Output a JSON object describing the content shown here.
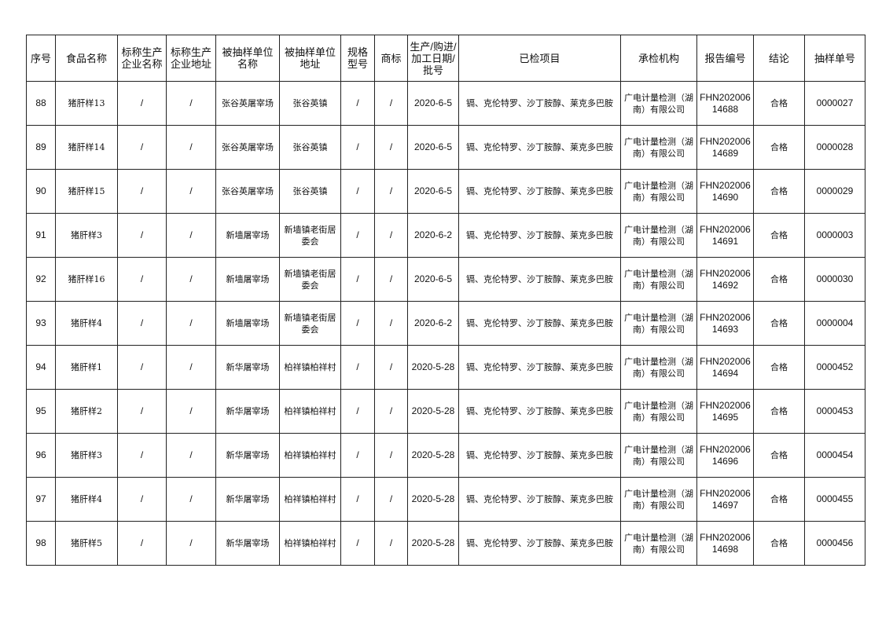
{
  "headers": [
    "序号",
    "食品名称",
    "标称生产企业名称",
    "标称生产企业地址",
    "被抽样单位名称",
    "被抽样单位地址",
    "规格型号",
    "商标",
    "生产/购进/加工日期/批号",
    "已检项目",
    "承检机构",
    "报告编号",
    "结论",
    "抽样单号"
  ],
  "rows": [
    [
      "88",
      "猪肝样13",
      "/",
      "/",
      "张谷英屠宰场",
      "张谷英镇",
      "/",
      "/",
      "2020-6-5",
      "镉、克伦特罗、沙丁胺醇、莱克多巴胺",
      "广电计量检测（湖南）有限公司",
      "FHN20200614688",
      "合格",
      "0000027"
    ],
    [
      "89",
      "猪肝样14",
      "/",
      "/",
      "张谷英屠宰场",
      "张谷英镇",
      "/",
      "/",
      "2020-6-5",
      "镉、克伦特罗、沙丁胺醇、莱克多巴胺",
      "广电计量检测（湖南）有限公司",
      "FHN20200614689",
      "合格",
      "0000028"
    ],
    [
      "90",
      "猪肝样15",
      "/",
      "/",
      "张谷英屠宰场",
      "张谷英镇",
      "/",
      "/",
      "2020-6-5",
      "镉、克伦特罗、沙丁胺醇、莱克多巴胺",
      "广电计量检测（湖南）有限公司",
      "FHN20200614690",
      "合格",
      "0000029"
    ],
    [
      "91",
      "猪肝样3",
      "/",
      "/",
      "新墙屠宰场",
      "新墙镇老街居委会",
      "/",
      "/",
      "2020-6-2",
      "镉、克伦特罗、沙丁胺醇、莱克多巴胺",
      "广电计量检测（湖南）有限公司",
      "FHN20200614691",
      "合格",
      "0000003"
    ],
    [
      "92",
      "猪肝样16",
      "/",
      "/",
      "新墙屠宰场",
      "新墙镇老街居委会",
      "/",
      "/",
      "2020-6-5",
      "镉、克伦特罗、沙丁胺醇、莱克多巴胺",
      "广电计量检测（湖南）有限公司",
      "FHN20200614692",
      "合格",
      "0000030"
    ],
    [
      "93",
      "猪肝样4",
      "/",
      "/",
      "新墙屠宰场",
      "新墙镇老街居委会",
      "/",
      "/",
      "2020-6-2",
      "镉、克伦特罗、沙丁胺醇、莱克多巴胺",
      "广电计量检测（湖南）有限公司",
      "FHN20200614693",
      "合格",
      "0000004"
    ],
    [
      "94",
      "猪肝样1",
      "/",
      "/",
      "新华屠宰场",
      "柏祥镇柏祥村",
      "/",
      "/",
      "2020-5-28",
      "镉、克伦特罗、沙丁胺醇、莱克多巴胺",
      "广电计量检测（湖南）有限公司",
      "FHN20200614694",
      "合格",
      "0000452"
    ],
    [
      "95",
      "猪肝样2",
      "/",
      "/",
      "新华屠宰场",
      "柏祥镇柏祥村",
      "/",
      "/",
      "2020-5-28",
      "镉、克伦特罗、沙丁胺醇、莱克多巴胺",
      "广电计量检测（湖南）有限公司",
      "FHN20200614695",
      "合格",
      "0000453"
    ],
    [
      "96",
      "猪肝样3",
      "/",
      "/",
      "新华屠宰场",
      "柏祥镇柏祥村",
      "/",
      "/",
      "2020-5-28",
      "镉、克伦特罗、沙丁胺醇、莱克多巴胺",
      "广电计量检测（湖南）有限公司",
      "FHN20200614696",
      "合格",
      "0000454"
    ],
    [
      "97",
      "猪肝样4",
      "/",
      "/",
      "新华屠宰场",
      "柏祥镇柏祥村",
      "/",
      "/",
      "2020-5-28",
      "镉、克伦特罗、沙丁胺醇、莱克多巴胺",
      "广电计量检测（湖南）有限公司",
      "FHN20200614697",
      "合格",
      "0000455"
    ],
    [
      "98",
      "猪肝样5",
      "/",
      "/",
      "新华屠宰场",
      "柏祥镇柏祥村",
      "/",
      "/",
      "2020-5-28",
      "镉、克伦特罗、沙丁胺醇、莱克多巴胺",
      "广电计量检测（湖南）有限公司",
      "FHN20200614698",
      "合格",
      "0000456"
    ]
  ]
}
